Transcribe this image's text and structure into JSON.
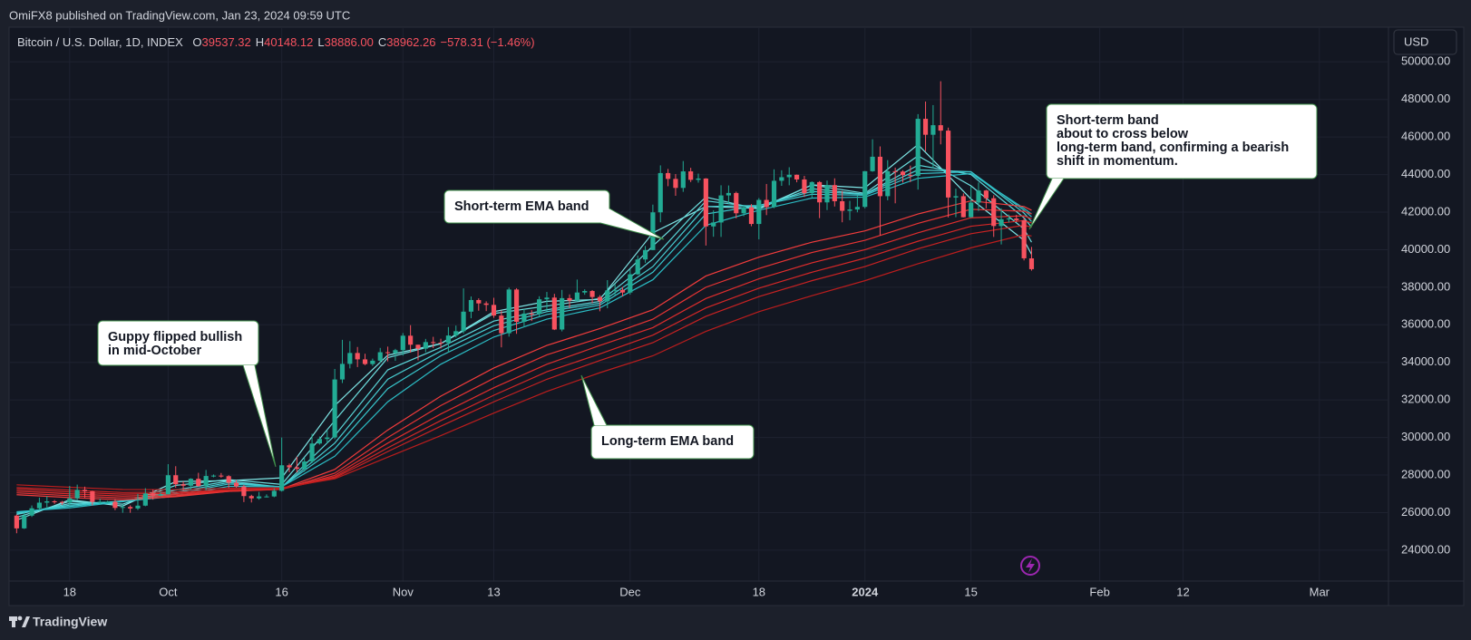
{
  "header": {
    "publisher": "OmiFX8 published on TradingView.com, Jan 23, 2024 09:59 UTC"
  },
  "legend": {
    "symbol": "Bitcoin / U.S. Dollar, 1D, INDEX",
    "ohlc": [
      {
        "key": "O",
        "value": "39537.32"
      },
      {
        "key": "H",
        "value": "40148.12"
      },
      {
        "key": "L",
        "value": "38886.00"
      },
      {
        "key": "C",
        "value": "38962.26"
      }
    ],
    "change": "−578.31 (−1.46%)"
  },
  "currency": "USD",
  "footer": {
    "brand": "TradingView"
  },
  "chart_data": {
    "type": "candlestick",
    "up_color": "#22ab94",
    "down_color": "#f7525f",
    "grid": true,
    "x": [
      "2023-09-11",
      "2023-09-12",
      "2023-09-13",
      "2023-09-14",
      "2023-09-15",
      "2023-09-16",
      "2023-09-17",
      "2023-09-18",
      "2023-09-19",
      "2023-09-20",
      "2023-09-21",
      "2023-09-22",
      "2023-09-23",
      "2023-09-24",
      "2023-09-25",
      "2023-09-26",
      "2023-09-27",
      "2023-09-28",
      "2023-09-29",
      "2023-09-30",
      "2023-10-01",
      "2023-10-02",
      "2023-10-03",
      "2023-10-04",
      "2023-10-05",
      "2023-10-06",
      "2023-10-07",
      "2023-10-08",
      "2023-10-09",
      "2023-10-10",
      "2023-10-11",
      "2023-10-12",
      "2023-10-13",
      "2023-10-14",
      "2023-10-15",
      "2023-10-16",
      "2023-10-17",
      "2023-10-18",
      "2023-10-19",
      "2023-10-20",
      "2023-10-21",
      "2023-10-22",
      "2023-10-23",
      "2023-10-24",
      "2023-10-25",
      "2023-10-26",
      "2023-10-27",
      "2023-10-28",
      "2023-10-29",
      "2023-10-30",
      "2023-10-31",
      "2023-11-01",
      "2023-11-02",
      "2023-11-03",
      "2023-11-04",
      "2023-11-05",
      "2023-11-06",
      "2023-11-07",
      "2023-11-08",
      "2023-11-09",
      "2023-11-10",
      "2023-11-11",
      "2023-11-12",
      "2023-11-13",
      "2023-11-14",
      "2023-11-15",
      "2023-11-16",
      "2023-11-17",
      "2023-11-18",
      "2023-11-19",
      "2023-11-20",
      "2023-11-21",
      "2023-11-22",
      "2023-11-23",
      "2023-11-24",
      "2023-11-25",
      "2023-11-26",
      "2023-11-27",
      "2023-11-28",
      "2023-11-29",
      "2023-11-30",
      "2023-12-01",
      "2023-12-02",
      "2023-12-03",
      "2023-12-04",
      "2023-12-05",
      "2023-12-06",
      "2023-12-07",
      "2023-12-08",
      "2023-12-09",
      "2023-12-10",
      "2023-12-11",
      "2023-12-12",
      "2023-12-13",
      "2023-12-14",
      "2023-12-15",
      "2023-12-16",
      "2023-12-17",
      "2023-12-18",
      "2023-12-19",
      "2023-12-20",
      "2023-12-21",
      "2023-12-22",
      "2023-12-23",
      "2023-12-24",
      "2023-12-25",
      "2023-12-26",
      "2023-12-27",
      "2023-12-28",
      "2023-12-29",
      "2023-12-30",
      "2023-12-31",
      "2024-01-01",
      "2024-01-02",
      "2024-01-03",
      "2024-01-04",
      "2024-01-05",
      "2024-01-06",
      "2024-01-07",
      "2024-01-08",
      "2024-01-09",
      "2024-01-10",
      "2024-01-11",
      "2024-01-12",
      "2024-01-13",
      "2024-01-14",
      "2024-01-15",
      "2024-01-16",
      "2024-01-17",
      "2024-01-18",
      "2024-01-19",
      "2024-01-20",
      "2024-01-21",
      "2024-01-22",
      "2024-01-23"
    ],
    "open": [
      25840,
      25160,
      25840,
      26230,
      26530,
      26600,
      26570,
      26530,
      26760,
      27210,
      27130,
      26570,
      26580,
      26580,
      26250,
      26300,
      26220,
      26370,
      27020,
      26910,
      26970,
      27990,
      27510,
      27430,
      27800,
      27420,
      27950,
      27970,
      27940,
      27590,
      27390,
      26880,
      26760,
      26860,
      26860,
      27160,
      28520,
      28410,
      28330,
      28720,
      29680,
      29920,
      30000,
      33090,
      33920,
      34500,
      34160,
      33910,
      34090,
      34540,
      34490,
      34650,
      35420,
      34940,
      34730,
      35080,
      35050,
      35040,
      35430,
      35660,
      36700,
      37320,
      37140,
      37060,
      36490,
      35550,
      37880,
      36160,
      36600,
      36570,
      37360,
      37450,
      35750,
      37420,
      37290,
      37720,
      37800,
      37480,
      37250,
      37830,
      37860,
      37720,
      38690,
      39480,
      39980,
      41990,
      44080,
      43770,
      43290,
      44170,
      43720,
      43790,
      41240,
      41450,
      42890,
      43020,
      41940,
      42260,
      41370,
      42650,
      42270,
      43670,
      43860,
      43990,
      43740,
      43010,
      43600,
      42520,
      43440,
      42580,
      42070,
      42140,
      42280,
      44180,
      44950,
      42850,
      44180,
      44160,
      43970,
      43930,
      46970,
      46120,
      46630,
      46340,
      42780,
      42850,
      41730,
      42510,
      43150,
      42740,
      41260,
      41620,
      41660,
      41570,
      39537.32
    ],
    "high": [
      25900,
      26000,
      26380,
      26800,
      26880,
      26670,
      26620,
      27420,
      27490,
      27380,
      27160,
      26740,
      26630,
      26730,
      26440,
      26390,
      27000,
      27300,
      27230,
      27090,
      28580,
      28470,
      27660,
      27830,
      28120,
      28270,
      28030,
      28110,
      27990,
      27730,
      27480,
      26950,
      27100,
      26970,
      27290,
      30000,
      28610,
      28980,
      28930,
      30200,
      30050,
      30380,
      33650,
      35200,
      35130,
      34820,
      34460,
      34200,
      34770,
      34840,
      34720,
      35560,
      35980,
      34940,
      35250,
      35360,
      35260,
      35880,
      35960,
      37940,
      37510,
      37410,
      37250,
      37440,
      36760,
      37980,
      37950,
      36840,
      36780,
      37520,
      37750,
      37650,
      37860,
      37620,
      38410,
      37890,
      37850,
      37580,
      38380,
      38170,
      38020,
      38970,
      39690,
      40200,
      42400,
      44490,
      44300,
      44030,
      44720,
      44360,
      44050,
      43810,
      42100,
      43430,
      43420,
      43090,
      42380,
      42430,
      42750,
      43500,
      44280,
      44230,
      44390,
      44000,
      43930,
      43640,
      43650,
      43680,
      43800,
      43130,
      42600,
      42880,
      44190,
      45880,
      45500,
      44770,
      44370,
      44230,
      44480,
      47220,
      47890,
      47700,
      48970,
      46500,
      43250,
      43000,
      43380,
      43580,
      43190,
      42900,
      42200,
      41870,
      41860,
      41720,
      40148.12
    ],
    "low": [
      24900,
      25130,
      25770,
      26130,
      26220,
      26470,
      26410,
      26390,
      26680,
      26800,
      26380,
      26470,
      26500,
      26130,
      25990,
      25990,
      26140,
      26340,
      26690,
      26870,
      26960,
      27320,
      27180,
      27220,
      27370,
      27190,
      27880,
      27860,
      27300,
      27330,
      26560,
      26540,
      26690,
      26810,
      26820,
      27120,
      28150,
      28140,
      28170,
      28640,
      29620,
      29700,
      29910,
      32900,
      33680,
      33750,
      33850,
      33810,
      33960,
      34050,
      34080,
      34360,
      34520,
      34110,
      34540,
      34760,
      34740,
      34520,
      35330,
      35540,
      36350,
      36750,
      36730,
      36370,
      34800,
      35370,
      35520,
      35870,
      36200,
      36430,
      36720,
      35720,
      35650,
      36900,
      37250,
      37600,
      37150,
      36720,
      36880,
      37560,
      37510,
      37610,
      38660,
      39300,
      39970,
      41460,
      43380,
      42870,
      43080,
      43600,
      43570,
      40220,
      40690,
      40680,
      42450,
      41670,
      41780,
      41250,
      40550,
      41840,
      42210,
      43400,
      43430,
      43590,
      42810,
      42750,
      41680,
      42110,
      42300,
      41460,
      41570,
      41990,
      42200,
      44150,
      40750,
      42630,
      42470,
      43570,
      43600,
      43200,
      45240,
      44340,
      45610,
      41720,
      41730,
      41720,
      41700,
      42060,
      42200,
      40680,
      40280,
      41450,
      41480,
      39430,
      38886.0
    ],
    "close": [
      25160,
      25840,
      26230,
      26530,
      26600,
      26570,
      26530,
      26760,
      27210,
      27130,
      26570,
      26580,
      26580,
      26250,
      26300,
      26220,
      26370,
      27020,
      26910,
      26970,
      27990,
      27510,
      27430,
      27800,
      27420,
      27950,
      27970,
      27940,
      27590,
      27390,
      26880,
      26760,
      26860,
      26860,
      27160,
      28520,
      28410,
      28330,
      28720,
      29680,
      29920,
      30000,
      33090,
      33920,
      34500,
      34160,
      33910,
      34090,
      34540,
      34490,
      34650,
      35420,
      34940,
      34730,
      35080,
      35050,
      35040,
      35430,
      35660,
      36700,
      37320,
      37140,
      37060,
      36490,
      35550,
      37880,
      36160,
      36600,
      36570,
      37360,
      37450,
      35750,
      37420,
      37290,
      37720,
      37800,
      37480,
      37250,
      37830,
      37860,
      37720,
      38690,
      39480,
      39980,
      41990,
      44080,
      43770,
      43290,
      44170,
      43720,
      43790,
      41240,
      41450,
      42890,
      43020,
      41940,
      42260,
      41370,
      42650,
      42270,
      43670,
      43860,
      43990,
      43740,
      43010,
      43600,
      42520,
      43440,
      42580,
      42070,
      42140,
      42280,
      44180,
      44950,
      42850,
      44180,
      44160,
      43970,
      43930,
      46970,
      46120,
      46630,
      46340,
      42780,
      42850,
      41730,
      42510,
      43150,
      42740,
      41260,
      41620,
      41660,
      41570,
      39540.57,
      38962.26
    ],
    "overlays": {
      "x": [
        "2023-09-11",
        "2023-09-18",
        "2023-09-25",
        "2023-10-02",
        "2023-10-09",
        "2023-10-16",
        "2023-10-23",
        "2023-10-30",
        "2023-11-06",
        "2023-11-13",
        "2023-11-20",
        "2023-11-27",
        "2023-12-04",
        "2023-12-11",
        "2023-12-18",
        "2023-12-25",
        "2024-01-01",
        "2024-01-08",
        "2024-01-15",
        "2024-01-22",
        "2024-01-23"
      ],
      "series": [
        {
          "color": "#7fe6e6",
          "values": [
            25600,
            26680,
            26350,
            27650,
            27700,
            27850,
            31700,
            34380,
            35000,
            36700,
            37250,
            37350,
            40900,
            42300,
            42200,
            43450,
            43300,
            45600,
            42700,
            40500,
            39750
          ]
        },
        {
          "color": "#6cdede",
          "values": [
            25750,
            26600,
            26450,
            27450,
            27760,
            27500,
            30900,
            34250,
            34990,
            36600,
            37000,
            37400,
            40200,
            42800,
            42150,
            43450,
            43000,
            45000,
            43400,
            41100,
            40400
          ]
        },
        {
          "color": "#5ad6d8",
          "values": [
            25900,
            26480,
            26580,
            27200,
            27680,
            27350,
            30100,
            33600,
            34800,
            36200,
            36800,
            37250,
            39500,
            42600,
            42250,
            43250,
            42950,
            44500,
            44000,
            41700,
            41200
          ]
        },
        {
          "color": "#48ced2",
          "values": [
            25950,
            26400,
            26620,
            27080,
            27600,
            27360,
            29700,
            33100,
            34600,
            35950,
            36700,
            37150,
            39100,
            42300,
            42350,
            43100,
            42950,
            44250,
            44150,
            41950,
            41500
          ]
        },
        {
          "color": "#38c6cc",
          "values": [
            26000,
            26330,
            26620,
            26990,
            27520,
            27380,
            29400,
            32600,
            34350,
            35700,
            36550,
            37050,
            38800,
            41900,
            42350,
            42950,
            42900,
            44050,
            44150,
            42100,
            41750
          ]
        },
        {
          "color": "#2bbcc4",
          "values": [
            26050,
            26250,
            26590,
            26880,
            27400,
            27380,
            29000,
            31900,
            33900,
            35350,
            36300,
            36900,
            38400,
            41300,
            42100,
            42750,
            42800,
            43800,
            44050,
            42200,
            41900
          ]
        },
        {
          "color": "#f23c3c",
          "values": [
            26950,
            26800,
            26680,
            26850,
            27130,
            27260,
            28300,
            30400,
            32200,
            33700,
            34900,
            35800,
            36800,
            38600,
            39600,
            40400,
            41000,
            41900,
            42600,
            42300,
            42100
          ]
        },
        {
          "color": "#e83434",
          "values": [
            27050,
            26900,
            26780,
            26900,
            27130,
            27240,
            28100,
            30000,
            31700,
            33150,
            34400,
            35300,
            36300,
            38000,
            39000,
            39850,
            40500,
            41400,
            42150,
            42050,
            41900
          ]
        },
        {
          "color": "#df2d2d",
          "values": [
            27150,
            27000,
            26880,
            26960,
            27150,
            27240,
            27980,
            29700,
            31250,
            32650,
            33900,
            34900,
            35850,
            37400,
            38450,
            39300,
            40000,
            40900,
            41700,
            41800,
            41650
          ]
        },
        {
          "color": "#d42727",
          "values": [
            27250,
            27100,
            26980,
            27030,
            27180,
            27250,
            27900,
            29450,
            30900,
            32250,
            33500,
            34450,
            35450,
            36900,
            37950,
            38800,
            39550,
            40450,
            41250,
            41550,
            41430
          ]
        },
        {
          "color": "#c92222",
          "values": [
            27330,
            27200,
            27070,
            27100,
            27220,
            27270,
            27850,
            29250,
            30600,
            31900,
            33100,
            34100,
            35050,
            36450,
            37500,
            38350,
            39100,
            40050,
            40850,
            41300,
            41200
          ]
        },
        {
          "color": "#bb1d1d",
          "values": [
            27480,
            27350,
            27230,
            27220,
            27300,
            27320,
            27800,
            28950,
            30100,
            31300,
            32450,
            33450,
            34350,
            35650,
            36700,
            37550,
            38350,
            39250,
            40100,
            40800,
            40730
          ]
        }
      ]
    },
    "xlim": [
      "2023-09-10",
      "2024-03-10"
    ],
    "xticks": [
      {
        "value": "2023-09-18",
        "label": "18"
      },
      {
        "value": "2023-10-01",
        "label": "Oct"
      },
      {
        "value": "2023-10-16",
        "label": "16"
      },
      {
        "value": "2023-11-01",
        "label": "Nov"
      },
      {
        "value": "2023-11-13",
        "label": "13"
      },
      {
        "value": "2023-12-01",
        "label": "Dec"
      },
      {
        "value": "2023-12-18",
        "label": "18"
      },
      {
        "value": "2024-01-01",
        "label": "2024"
      },
      {
        "value": "2024-01-15",
        "label": "15"
      },
      {
        "value": "2024-02-01",
        "label": "Feb"
      },
      {
        "value": "2024-02-12",
        "label": "12"
      },
      {
        "value": "2024-03-01",
        "label": "Mar"
      }
    ],
    "ylim": [
      22450,
      51800
    ],
    "yticks": [
      {
        "value": 24000,
        "label": "24000.00"
      },
      {
        "value": 26000,
        "label": "26000.00"
      },
      {
        "value": 28000,
        "label": "28000.00"
      },
      {
        "value": 30000,
        "label": "30000.00"
      },
      {
        "value": 32000,
        "label": "32000.00"
      },
      {
        "value": 34000,
        "label": "34000.00"
      },
      {
        "value": 36000,
        "label": "36000.00"
      },
      {
        "value": 38000,
        "label": "38000.00"
      },
      {
        "value": 40000,
        "label": "40000.00"
      },
      {
        "value": 42000,
        "label": "42000.00"
      },
      {
        "value": 44000,
        "label": "44000.00"
      },
      {
        "value": 46000,
        "label": "46000.00"
      },
      {
        "value": 48000,
        "label": "48000.00"
      },
      {
        "value": 50000,
        "label": "50000.00"
      }
    ],
    "annotations": [
      {
        "lines": [
          "Guppy flipped bullish",
          "in mid-October"
        ]
      },
      {
        "lines": [
          "Short-term EMA band"
        ]
      },
      {
        "lines": [
          "Long-term EMA band"
        ]
      },
      {
        "lines": [
          "Short-term band",
          "about to cross below",
          "long-term band, confirming a bearish",
          "shift in momentum."
        ]
      }
    ]
  }
}
